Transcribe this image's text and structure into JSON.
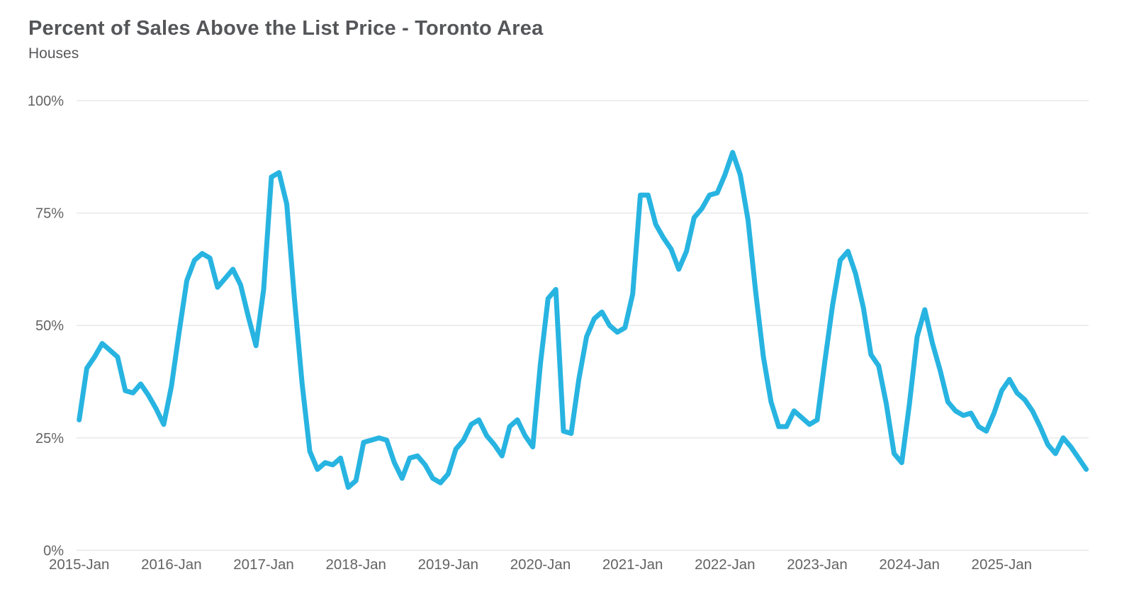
{
  "header": {
    "title": "Percent of Sales Above the List Price - Toronto Area",
    "subtitle": "Houses"
  },
  "colors": {
    "line": "#28b4e1",
    "title_text": "#555659",
    "axis_text": "#636363",
    "gridline": "#e9e9e9"
  },
  "chart_data": {
    "type": "line",
    "title": "Percent of Sales Above the List Price - Toronto Area",
    "subtitle": "Houses",
    "legend": "none",
    "grid": "horizontal-only",
    "ylim": [
      0,
      100
    ],
    "y_tick_labels": [
      "100%",
      "75%",
      "50%",
      "25%",
      "0%"
    ],
    "y_tick_values": [
      100,
      75,
      50,
      25,
      0
    ],
    "x_tick_labels": [
      "2015-Jan",
      "2016-Jan",
      "2017-Jan",
      "2018-Jan",
      "2019-Jan",
      "2020-Jan",
      "2021-Jan",
      "2022-Jan",
      "2023-Jan",
      "2024-Jan",
      "2025-Jan"
    ],
    "x_start": "2015-Jan",
    "x_interval": "month",
    "series": [
      {
        "name": "Houses",
        "color": "#28b4e1",
        "values": [
          29,
          40.5,
          43,
          46,
          44.5,
          43,
          35.5,
          35,
          37,
          34.5,
          31.5,
          28,
          36.5,
          48.5,
          60,
          64.5,
          66,
          65,
          58.5,
          60.5,
          62.5,
          59,
          52,
          45.5,
          58,
          83,
          84,
          77,
          56,
          37,
          22,
          18,
          19.5,
          19,
          20.5,
          14,
          15.5,
          24,
          24.5,
          25,
          24.5,
          19.5,
          16,
          20.5,
          21,
          19,
          16,
          15,
          17,
          22.5,
          24.5,
          28,
          29,
          25.5,
          23.5,
          21,
          27.5,
          29,
          25.5,
          23,
          41.5,
          56,
          58,
          26.5,
          26,
          38,
          47.5,
          51.5,
          53,
          50,
          48.5,
          49.5,
          57,
          79,
          79,
          72.5,
          69.5,
          67,
          62.5,
          66.5,
          74,
          76,
          79,
          79.5,
          83.5,
          88.5,
          83.5,
          73.5,
          57.5,
          43,
          33,
          27.5,
          27.5,
          31,
          29.5,
          28,
          29,
          42,
          54.5,
          64.5,
          66.5,
          61.5,
          54,
          43.5,
          41,
          32.5,
          21.5,
          19.5,
          32.5,
          47.5,
          53.5,
          46,
          40,
          33,
          31,
          30,
          30.5,
          27.5,
          26.5,
          30.5,
          35.5,
          38,
          35,
          33.5,
          31,
          27.5,
          23.5,
          21.5,
          25,
          23,
          20.5,
          18
        ]
      }
    ]
  }
}
